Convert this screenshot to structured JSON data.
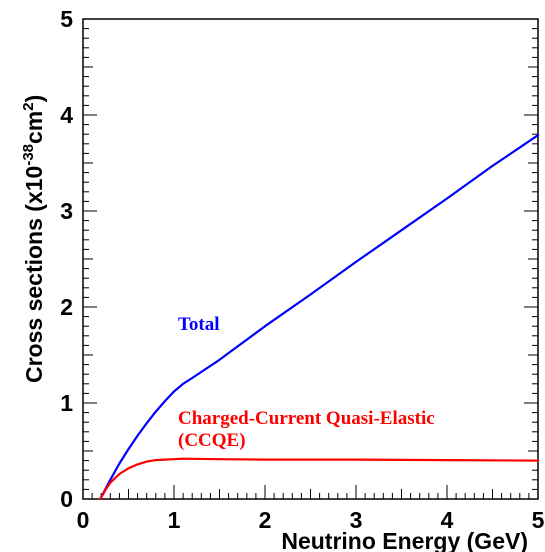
{
  "chart_data": {
    "type": "line",
    "xlabel": "Neutrino Energy (GeV)",
    "ylabel": {
      "prefix": "Cross sections (x10",
      "exp1": "-38",
      "mid": "cm",
      "exp2": "2",
      "suffix": ")"
    },
    "xlim": [
      0,
      5
    ],
    "ylim": [
      0,
      5
    ],
    "x_ticks": [
      "0",
      "1",
      "2",
      "3",
      "4",
      "5"
    ],
    "y_ticks": [
      "0",
      "1",
      "2",
      "3",
      "4",
      "5"
    ],
    "grid": false,
    "series": [
      {
        "name": "Total",
        "color": "#0000ff",
        "x": [
          0.19,
          0.3,
          0.4,
          0.5,
          0.6,
          0.7,
          0.8,
          0.9,
          1.0,
          1.1,
          1.2,
          1.5,
          2.0,
          2.5,
          3.0,
          3.5,
          4.0,
          4.5,
          5.0
        ],
        "y": [
          0.0,
          0.2,
          0.37,
          0.52,
          0.66,
          0.79,
          0.91,
          1.02,
          1.12,
          1.2,
          1.26,
          1.45,
          1.8,
          2.13,
          2.47,
          2.8,
          3.13,
          3.47,
          3.79
        ]
      },
      {
        "name": "Charged-Current Quasi-Elastic",
        "name_line2": "(CCQE)",
        "color": "#ff0000",
        "x": [
          0.19,
          0.25,
          0.3,
          0.4,
          0.5,
          0.6,
          0.7,
          0.8,
          0.9,
          1.0,
          1.1,
          1.5,
          2.0,
          3.0,
          4.0,
          5.0
        ],
        "y": [
          0.0,
          0.1,
          0.17,
          0.26,
          0.32,
          0.36,
          0.39,
          0.405,
          0.41,
          0.415,
          0.42,
          0.415,
          0.41,
          0.41,
          0.405,
          0.4
        ]
      }
    ],
    "annotations": [
      "Total",
      "Charged-Current Quasi-Elastic",
      "(CCQE)"
    ]
  }
}
